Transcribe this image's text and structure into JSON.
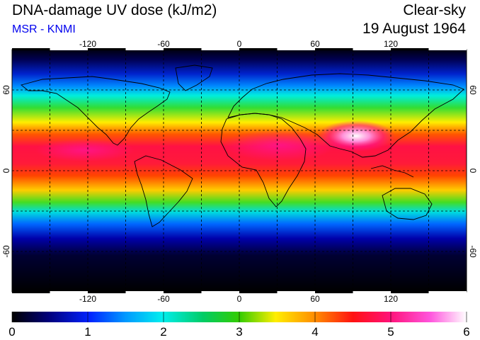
{
  "header": {
    "title": "DNA-damage UV dose (kJ/m2)",
    "source": "MSR - KNMI",
    "sky_condition": "Clear-sky",
    "date": "19 August 1964"
  },
  "map": {
    "lon_ticks": [
      "-120",
      "-60",
      "0",
      "60",
      "120"
    ],
    "lat_ticks": [
      "60",
      "0",
      "-60"
    ],
    "extent": {
      "lon": [
        -180,
        180
      ],
      "lat": [
        -90,
        90
      ]
    },
    "grid_lons": [
      -150,
      -120,
      -90,
      -60,
      -30,
      0,
      30,
      60,
      90,
      120,
      150
    ],
    "grid_lats": [
      -60,
      -30,
      0,
      30,
      60
    ]
  },
  "colorbar": {
    "labels": [
      "0",
      "1",
      "2",
      "3",
      "4",
      "5",
      "6"
    ],
    "range": [
      0,
      6
    ],
    "unit": "kJ/m2"
  },
  "colors": {
    "ramp": [
      "#000000",
      "#0000aa",
      "#0055ff",
      "#00eeee",
      "#22dd22",
      "#ffee00",
      "#ff8800",
      "#ff1111",
      "#ff1493",
      "#ff88ee",
      "#ffffff"
    ],
    "subtitle": "#0000ee"
  }
}
